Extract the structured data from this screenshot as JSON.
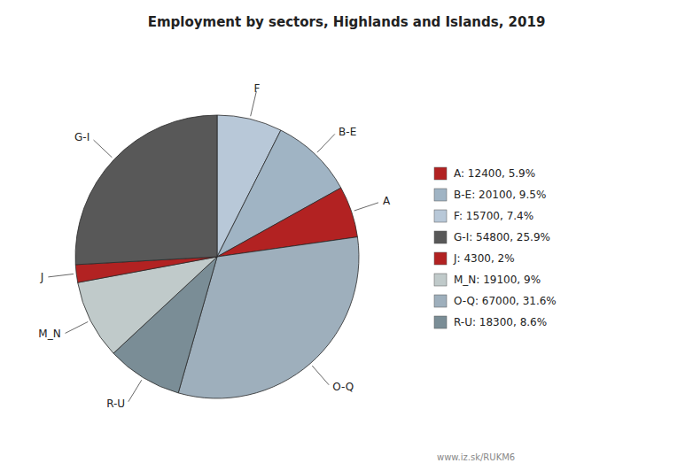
{
  "chart_data": {
    "type": "pie",
    "title": "Employment by sectors, Highlands and Islands, 2019",
    "categories": [
      "F",
      "B-E",
      "A",
      "O-Q",
      "R-U",
      "M_N",
      "J",
      "G-I"
    ],
    "values": [
      15700,
      20100,
      12400,
      67000,
      18300,
      19100,
      4300,
      54800
    ],
    "colors": [
      "#b8c8d8",
      "#a0b4c4",
      "#b22222",
      "#9eafbc",
      "#7a8d96",
      "#c0caca",
      "#b22222",
      "#585858"
    ],
    "legend": "right",
    "legend_items": [
      {
        "label": "A: 12400, 5.9%",
        "color": "#b22222"
      },
      {
        "label": "B-E: 20100, 9.5%",
        "color": "#a0b4c4"
      },
      {
        "label": "F: 15700, 7.4%",
        "color": "#b8c8d8"
      },
      {
        "label": "G-I: 54800, 25.9%",
        "color": "#585858"
      },
      {
        "label": "J: 4300, 2%",
        "color": "#b22222"
      },
      {
        "label": "M_N: 19100, 9%",
        "color": "#c0caca"
      },
      {
        "label": "O-Q: 67000, 31.6%",
        "color": "#9eafbc"
      },
      {
        "label": "R-U: 18300, 8.6%",
        "color": "#7a8d96"
      }
    ],
    "annotations": [
      "www.iz.sk/RUKM6"
    ]
  }
}
